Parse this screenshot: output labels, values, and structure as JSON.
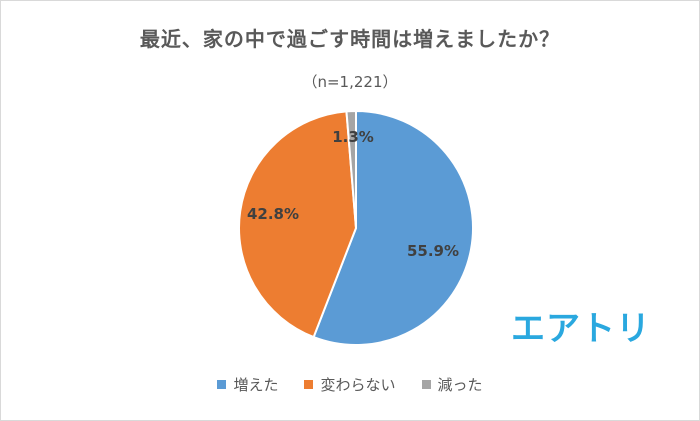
{
  "chart_data": {
    "type": "pie",
    "title": "最近、家の中で過ごす時間は増えましたか？",
    "subtitle": "（n=1,221）",
    "slices": [
      {
        "label": "増えた",
        "value": 55.9,
        "value_label": "55.9%",
        "color": "#5b9bd5"
      },
      {
        "label": "変わらない",
        "value": 42.8,
        "value_label": "42.8%",
        "color": "#ed7d31"
      },
      {
        "label": "減った",
        "value": 1.3,
        "value_label": "1.3%",
        "color": "#a5a5a5"
      }
    ],
    "start_angle": "12 o'clock",
    "direction": "clockwise",
    "legend_position": "bottom"
  },
  "logo": {
    "text": "エアトリ",
    "color": "#2aa8df"
  }
}
